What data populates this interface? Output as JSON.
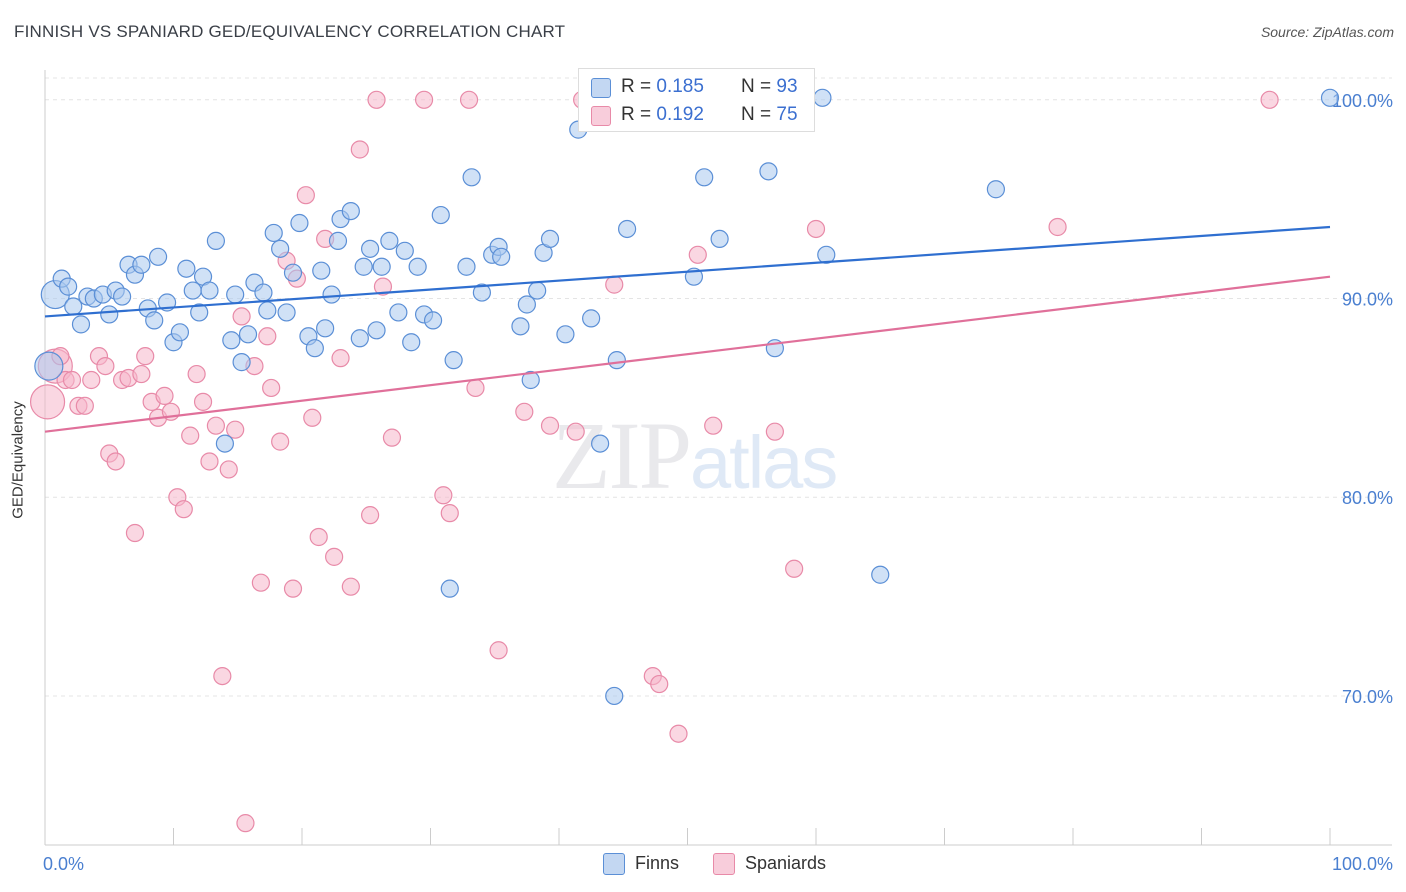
{
  "header": {
    "title": "FINNISH VS SPANIARD GED/EQUIVALENCY CORRELATION CHART",
    "source": "Source: ZipAtlas.com"
  },
  "watermark": {
    "zip": "ZIP",
    "atlas": "atlas"
  },
  "legend": {
    "rows": [
      {
        "r_label": "R = ",
        "r_value": "0.185",
        "n_label": "N = ",
        "n_value": "93"
      },
      {
        "r_label": "R = ",
        "r_value": "0.192",
        "n_label": "N = ",
        "n_value": "75"
      }
    ],
    "bottom": [
      "Finns",
      "Spaniards"
    ]
  },
  "colors": {
    "finns_fill": "#aac8ee",
    "finns_stroke": "#5b8fd6",
    "finns_line": "#2f6fd0",
    "span_fill": "#f6b6cb",
    "span_stroke": "#e88aa8",
    "span_line": "#e0709a",
    "tick_label": "#4a7fd0",
    "grid": "#e4e4e4"
  },
  "chart_data": {
    "type": "scatter",
    "title": "FINNISH VS SPANIARD GED/EQUIVALENCY CORRELATION CHART",
    "xlabel": "",
    "ylabel": "GED/Equivalency",
    "xlim": [
      0,
      100
    ],
    "ylim": [
      62.5,
      101.5
    ],
    "x_tick_labels": [
      "0.0%",
      "100.0%"
    ],
    "y_ticks": [
      70,
      80,
      90,
      100
    ],
    "y_tick_labels": [
      "70.0%",
      "80.0%",
      "90.0%",
      "100.0%"
    ],
    "grid": true,
    "legend_position": "top-center",
    "series": [
      {
        "name": "Finns",
        "trend": [
          [
            0,
            89.1
          ],
          [
            100,
            93.6
          ]
        ],
        "points": [
          [
            0.3,
            86.6
          ],
          [
            0.8,
            90.2
          ],
          [
            1.3,
            91.0
          ],
          [
            1.8,
            90.6
          ],
          [
            2.2,
            89.6
          ],
          [
            2.8,
            88.7
          ],
          [
            3.3,
            90.1
          ],
          [
            3.8,
            90.0
          ],
          [
            4.5,
            90.2
          ],
          [
            5.0,
            89.2
          ],
          [
            5.5,
            90.4
          ],
          [
            6.0,
            90.1
          ],
          [
            6.5,
            91.7
          ],
          [
            7.0,
            91.2
          ],
          [
            7.5,
            91.7
          ],
          [
            8.0,
            89.5
          ],
          [
            8.5,
            88.9
          ],
          [
            8.8,
            92.1
          ],
          [
            9.5,
            89.8
          ],
          [
            10.0,
            87.8
          ],
          [
            10.5,
            88.3
          ],
          [
            11.0,
            91.5
          ],
          [
            11.5,
            90.4
          ],
          [
            12.0,
            89.3
          ],
          [
            12.3,
            91.1
          ],
          [
            12.8,
            90.4
          ],
          [
            13.3,
            92.9
          ],
          [
            14.0,
            82.7
          ],
          [
            14.5,
            87.9
          ],
          [
            14.8,
            90.2
          ],
          [
            15.3,
            86.8
          ],
          [
            15.8,
            88.2
          ],
          [
            16.3,
            90.8
          ],
          [
            17.0,
            90.3
          ],
          [
            17.3,
            89.4
          ],
          [
            17.8,
            93.3
          ],
          [
            18.3,
            92.5
          ],
          [
            18.8,
            89.3
          ],
          [
            19.3,
            91.3
          ],
          [
            19.8,
            93.8
          ],
          [
            20.5,
            88.1
          ],
          [
            21.0,
            87.5
          ],
          [
            21.5,
            91.4
          ],
          [
            21.8,
            88.5
          ],
          [
            22.3,
            90.2
          ],
          [
            22.8,
            92.9
          ],
          [
            23.0,
            94.0
          ],
          [
            23.8,
            94.4
          ],
          [
            24.5,
            88.0
          ],
          [
            24.8,
            91.6
          ],
          [
            25.3,
            92.5
          ],
          [
            25.8,
            88.4
          ],
          [
            26.2,
            91.6
          ],
          [
            26.8,
            92.9
          ],
          [
            27.5,
            89.3
          ],
          [
            28.0,
            92.4
          ],
          [
            28.5,
            87.8
          ],
          [
            29.0,
            91.6
          ],
          [
            29.5,
            89.2
          ],
          [
            30.2,
            88.9
          ],
          [
            30.8,
            94.2
          ],
          [
            31.5,
            75.4
          ],
          [
            31.8,
            86.9
          ],
          [
            32.8,
            91.6
          ],
          [
            33.2,
            96.1
          ],
          [
            34.0,
            90.3
          ],
          [
            34.8,
            92.2
          ],
          [
            35.3,
            92.6
          ],
          [
            35.5,
            92.1
          ],
          [
            37.0,
            88.6
          ],
          [
            37.5,
            89.7
          ],
          [
            37.8,
            85.9
          ],
          [
            38.3,
            90.4
          ],
          [
            38.8,
            92.3
          ],
          [
            39.3,
            93.0
          ],
          [
            40.5,
            88.2
          ],
          [
            41.5,
            98.5
          ],
          [
            42.5,
            89.0
          ],
          [
            43.2,
            82.7
          ],
          [
            44.3,
            70.0
          ],
          [
            44.5,
            86.9
          ],
          [
            45.3,
            93.5
          ],
          [
            50.5,
            91.1
          ],
          [
            51.3,
            96.1
          ],
          [
            52.5,
            93.0
          ],
          [
            53.3,
            100.1
          ],
          [
            56.3,
            96.4
          ],
          [
            56.8,
            87.5
          ],
          [
            60.5,
            100.1
          ],
          [
            60.8,
            92.2
          ],
          [
            65.0,
            76.1
          ],
          [
            74.0,
            95.5
          ],
          [
            100.0,
            100.1
          ]
        ]
      },
      {
        "name": "Spaniards",
        "trend": [
          [
            0,
            83.3
          ],
          [
            100,
            91.1
          ]
        ],
        "points": [
          [
            0.2,
            84.8
          ],
          [
            0.8,
            86.6
          ],
          [
            1.2,
            87.1
          ],
          [
            1.6,
            85.9
          ],
          [
            2.1,
            85.9
          ],
          [
            2.6,
            84.6
          ],
          [
            3.1,
            84.6
          ],
          [
            3.6,
            85.9
          ],
          [
            4.2,
            87.1
          ],
          [
            4.7,
            86.6
          ],
          [
            5.0,
            82.2
          ],
          [
            5.5,
            81.8
          ],
          [
            6.0,
            85.9
          ],
          [
            6.5,
            86.0
          ],
          [
            7.0,
            78.2
          ],
          [
            7.5,
            86.2
          ],
          [
            7.8,
            87.1
          ],
          [
            8.3,
            84.8
          ],
          [
            8.8,
            84.0
          ],
          [
            9.3,
            85.1
          ],
          [
            9.8,
            84.3
          ],
          [
            10.3,
            80.0
          ],
          [
            10.8,
            79.4
          ],
          [
            11.3,
            83.1
          ],
          [
            11.8,
            86.2
          ],
          [
            12.3,
            84.8
          ],
          [
            12.8,
            81.8
          ],
          [
            13.3,
            83.6
          ],
          [
            13.8,
            71.0
          ],
          [
            14.3,
            81.4
          ],
          [
            14.8,
            83.4
          ],
          [
            15.3,
            89.1
          ],
          [
            15.6,
            63.6
          ],
          [
            16.3,
            86.6
          ],
          [
            16.8,
            75.7
          ],
          [
            17.3,
            88.1
          ],
          [
            17.6,
            85.5
          ],
          [
            18.3,
            82.8
          ],
          [
            18.8,
            91.9
          ],
          [
            19.3,
            75.4
          ],
          [
            19.6,
            91.0
          ],
          [
            20.3,
            95.2
          ],
          [
            20.8,
            84.0
          ],
          [
            21.3,
            78.0
          ],
          [
            21.8,
            93.0
          ],
          [
            22.5,
            77.0
          ],
          [
            23.0,
            87.0
          ],
          [
            23.8,
            75.5
          ],
          [
            24.5,
            97.5
          ],
          [
            25.3,
            79.1
          ],
          [
            25.8,
            100.0
          ],
          [
            26.3,
            90.6
          ],
          [
            27.0,
            83.0
          ],
          [
            29.5,
            100.0
          ],
          [
            31.0,
            80.1
          ],
          [
            31.5,
            79.2
          ],
          [
            33.0,
            100.0
          ],
          [
            33.5,
            85.5
          ],
          [
            35.3,
            72.3
          ],
          [
            37.3,
            84.3
          ],
          [
            39.3,
            83.6
          ],
          [
            41.3,
            83.3
          ],
          [
            41.8,
            100.0
          ],
          [
            43.8,
            99.0
          ],
          [
            44.3,
            90.7
          ],
          [
            47.3,
            71.0
          ],
          [
            47.8,
            70.6
          ],
          [
            49.3,
            68.1
          ],
          [
            50.8,
            92.2
          ],
          [
            52.0,
            83.6
          ],
          [
            56.8,
            83.3
          ],
          [
            58.3,
            76.4
          ],
          [
            60.0,
            93.5
          ],
          [
            78.8,
            93.6
          ],
          [
            95.3,
            100.0
          ]
        ]
      }
    ]
  }
}
